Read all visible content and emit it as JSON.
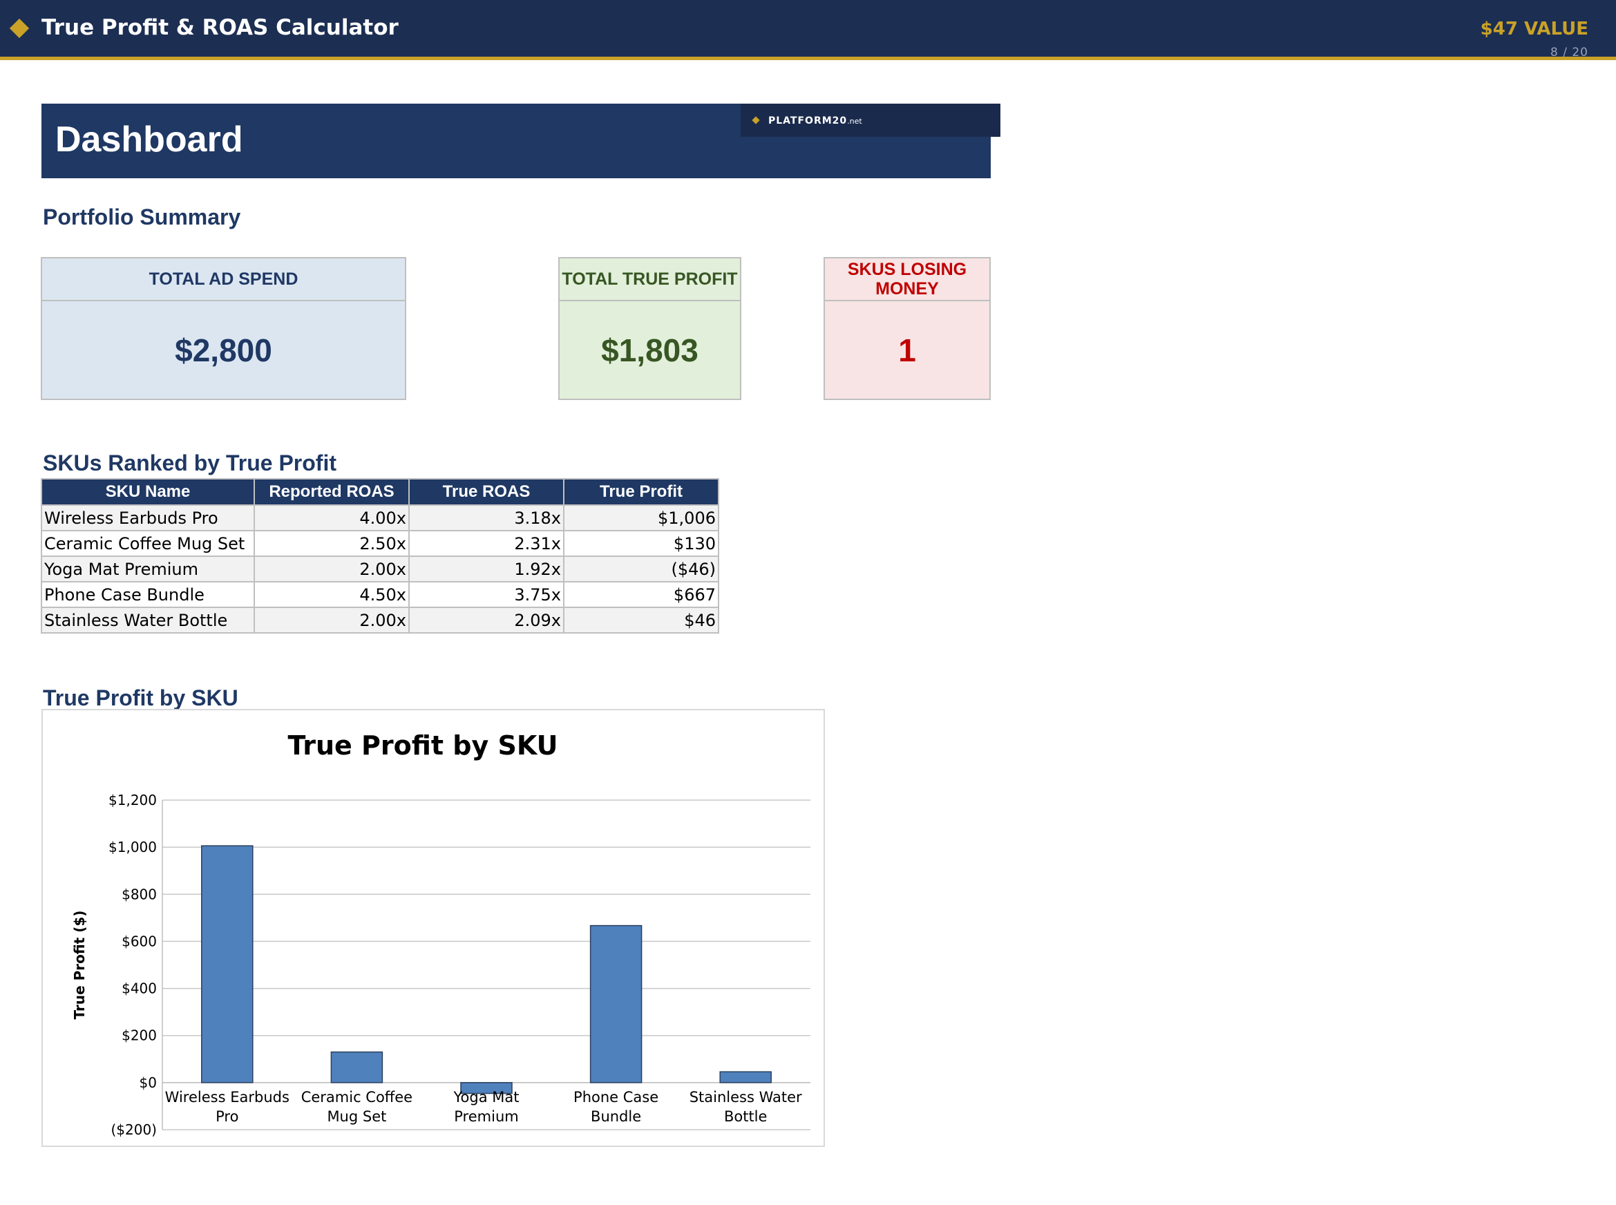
{
  "header": {
    "app_title": "True Profit & ROAS Calculator",
    "value_badge": "$47 VALUE",
    "page_indicator": "8 / 20",
    "logo_icon": "diamond-icon",
    "accent_color": "#c9a227",
    "bar_color": "#1c2e52"
  },
  "banner": {
    "title": "Dashboard",
    "logo_text": "PLATFORM20",
    "logo_suffix": ".net"
  },
  "summary": {
    "title": "Portfolio Summary",
    "cards": [
      {
        "label": "TOTAL AD SPEND",
        "value": "$2,800"
      },
      {
        "label": "TOTAL TRUE PROFIT",
        "value": "$1,803"
      },
      {
        "label": "SKUS LOSING MONEY",
        "value": "1"
      }
    ]
  },
  "ranking": {
    "title": "SKUs Ranked by True Profit",
    "columns": [
      "SKU Name",
      "Reported ROAS",
      "True ROAS",
      "True Profit"
    ],
    "rows": [
      [
        "Wireless Earbuds Pro",
        "4.00x",
        "3.18x",
        "$1,006"
      ],
      [
        "Ceramic Coffee Mug Set",
        "2.50x",
        "2.31x",
        "$130"
      ],
      [
        "Yoga Mat Premium",
        "2.00x",
        "1.92x",
        "($46)"
      ],
      [
        "Phone Case Bundle",
        "4.50x",
        "3.75x",
        "$667"
      ],
      [
        "Stainless Water Bottle",
        "2.00x",
        "2.09x",
        "$46"
      ]
    ]
  },
  "chart_section": {
    "title": "True Profit by SKU"
  },
  "chart_data": {
    "type": "bar",
    "title": "True Profit by SKU",
    "xlabel": "",
    "ylabel": "True Profit ($)",
    "categories": [
      [
        "Wireless Earbuds",
        "Pro"
      ],
      [
        "Ceramic Coffee",
        "Mug Set"
      ],
      [
        "Yoga Mat",
        "Premium"
      ],
      [
        "Phone Case",
        "Bundle"
      ],
      [
        "Stainless Water",
        "Bottle"
      ]
    ],
    "values": [
      1006,
      130,
      -46,
      667,
      46
    ],
    "ylim": [
      -200,
      1200
    ],
    "yticks": [
      -200,
      0,
      200,
      400,
      600,
      800,
      1000,
      1200
    ],
    "ytick_labels": [
      "($200)",
      "$0",
      "$200",
      "$400",
      "$600",
      "$800",
      "$1,000",
      "$1,200"
    ],
    "grid": true,
    "legend": "none",
    "bar_color": "#4f81bd"
  }
}
